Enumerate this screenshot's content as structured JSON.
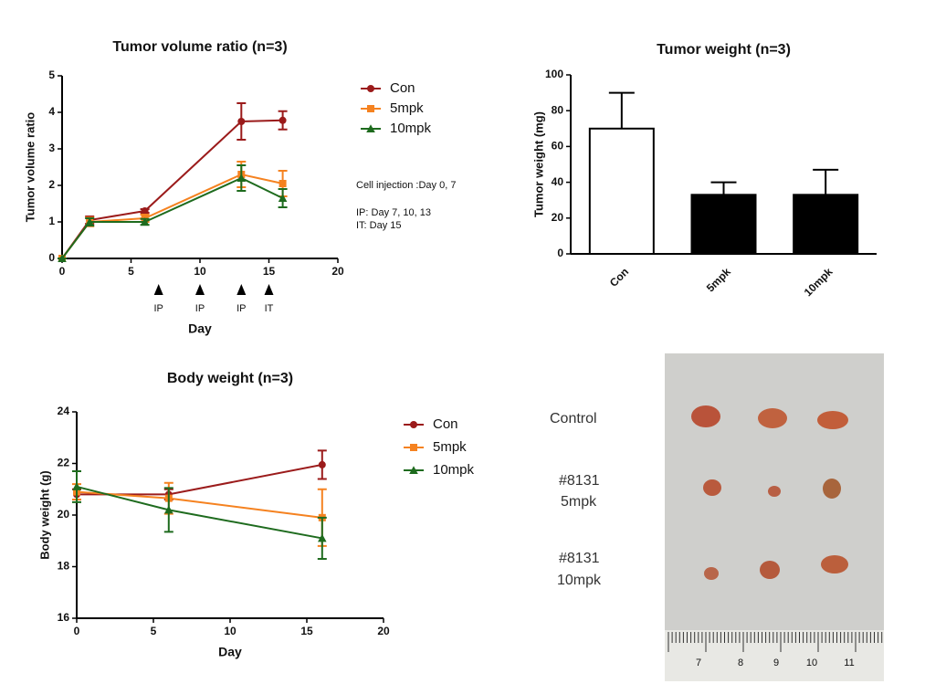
{
  "chart_data": [
    {
      "type": "line",
      "title": "Tumor volume ratio (n=3)",
      "x_label": "Day",
      "y_label": "Tumor volume ratio",
      "x": [
        0,
        2,
        6,
        13,
        16
      ],
      "xlim": [
        0,
        20
      ],
      "xticks": [
        0,
        5,
        10,
        15,
        20
      ],
      "ylim": [
        0,
        5
      ],
      "yticks": [
        0,
        1,
        2,
        3,
        4,
        5
      ],
      "series": [
        {
          "name": "Con",
          "color": "#9b1b1b",
          "marker": "circle",
          "values": [
            0,
            1.05,
            1.3,
            3.75,
            3.78
          ],
          "errors": [
            0,
            0.1,
            0.05,
            0.5,
            0.25
          ]
        },
        {
          "name": "5mpk",
          "color": "#f58220",
          "marker": "square",
          "values": [
            0,
            1.0,
            1.1,
            2.3,
            2.05
          ],
          "errors": [
            0,
            0.12,
            0.1,
            0.35,
            0.35
          ]
        },
        {
          "name": "10mpk",
          "color": "#1e6b1e",
          "marker": "triangle",
          "values": [
            0,
            1.0,
            1.0,
            2.2,
            1.65
          ],
          "errors": [
            0,
            0.1,
            0.08,
            0.35,
            0.25
          ]
        }
      ],
      "arrows": [
        {
          "x": 7,
          "label": "IP"
        },
        {
          "x": 10,
          "label": "IP"
        },
        {
          "x": 13,
          "label": "IP"
        },
        {
          "x": 15,
          "label": "IT"
        }
      ],
      "notes": [
        "Cell injection :Day 0, 7",
        "IP: Day 7, 10, 13",
        "IT: Day 15"
      ]
    },
    {
      "type": "bar",
      "title": "Tumor weight (n=3)",
      "y_label": "Tumor weight (mg)",
      "categories": [
        "Con",
        "5mpk",
        "10mpk"
      ],
      "values": [
        70,
        33,
        33
      ],
      "errors": [
        20,
        7,
        14
      ],
      "colors": [
        "#ffffff",
        "#000000",
        "#000000"
      ],
      "ylim": [
        0,
        100
      ],
      "yticks": [
        0,
        20,
        40,
        60,
        80,
        100
      ]
    },
    {
      "type": "line",
      "title": "Body weight (n=3)",
      "x_label": "Day",
      "y_label": "Body weight (g)",
      "x": [
        0,
        6,
        16
      ],
      "xlim": [
        0,
        20
      ],
      "xticks": [
        0,
        5,
        10,
        15,
        20
      ],
      "ylim": [
        16,
        24
      ],
      "yticks": [
        16,
        18,
        20,
        22,
        24
      ],
      "series": [
        {
          "name": "Con",
          "color": "#9b1b1b",
          "marker": "circle",
          "values": [
            20.8,
            20.8,
            21.95
          ],
          "errors": [
            0.2,
            0.2,
            0.55
          ]
        },
        {
          "name": "5mpk",
          "color": "#f58220",
          "marker": "square",
          "values": [
            20.9,
            20.65,
            19.9
          ],
          "errors": [
            0.3,
            0.6,
            1.1
          ]
        },
        {
          "name": "10mpk",
          "color": "#1e6b1e",
          "marker": "triangle",
          "values": [
            21.1,
            20.2,
            19.1
          ],
          "errors": [
            0.6,
            0.85,
            0.8
          ]
        }
      ]
    }
  ],
  "photo": {
    "labels": [
      [
        "Control"
      ],
      [
        "#8131",
        "5mpk"
      ],
      [
        "#8131",
        "10mpk"
      ]
    ],
    "ruler_labels": [
      "7",
      "8",
      "9",
      "10",
      "11"
    ]
  }
}
